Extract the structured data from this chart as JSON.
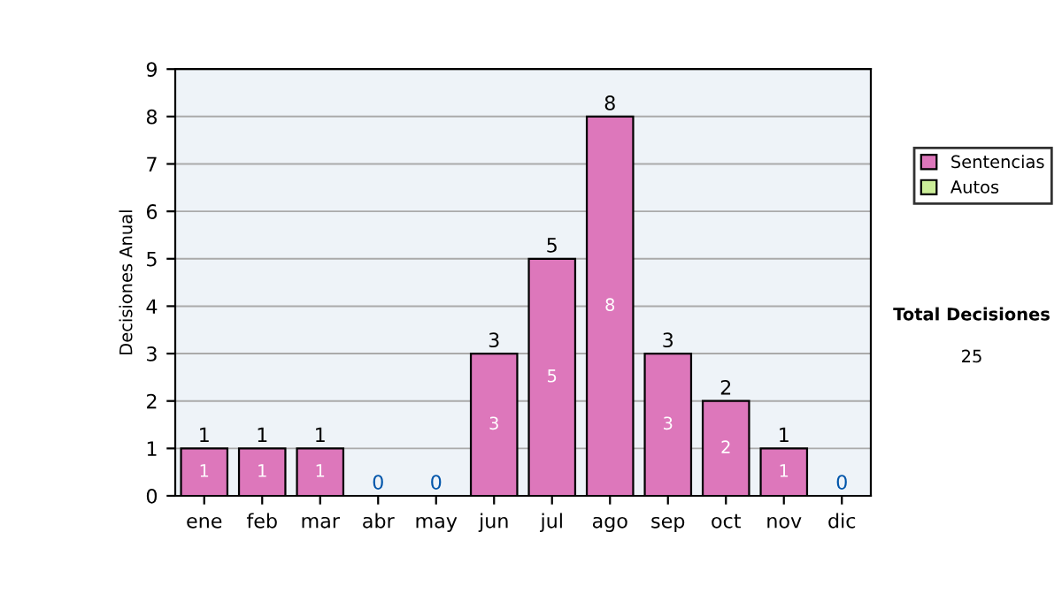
{
  "chart_data": {
    "type": "bar",
    "stacked": true,
    "ylabel": "Decisiones Anual",
    "categories": [
      "ene",
      "feb",
      "mar",
      "abr",
      "may",
      "jun",
      "jul",
      "ago",
      "sep",
      "oct",
      "nov",
      "dic"
    ],
    "series": [
      {
        "name": "Sentencias",
        "color": "#dd77bb",
        "values": [
          1,
          1,
          1,
          0,
          0,
          3,
          5,
          8,
          3,
          2,
          1,
          0
        ],
        "value_labels": [
          "1",
          "1",
          "1",
          null,
          null,
          "3",
          "5",
          "8",
          "3",
          "2",
          "1",
          null
        ]
      },
      {
        "name": "Autos",
        "color": "#ccee99",
        "values": [
          0,
          0,
          0,
          0,
          0,
          0,
          0,
          0,
          0,
          0,
          0,
          0
        ]
      }
    ],
    "totals": [
      "1",
      "1",
      "1",
      "0",
      "0",
      "3",
      "5",
      "8",
      "3",
      "2",
      "1",
      "0"
    ],
    "ylim": [
      0,
      9
    ],
    "yticks": [
      0,
      1,
      2,
      3,
      4,
      5,
      6,
      7,
      8,
      9
    ],
    "grid": "y",
    "legend": "right",
    "annotations": [
      "Total Decisiones",
      "25"
    ]
  }
}
